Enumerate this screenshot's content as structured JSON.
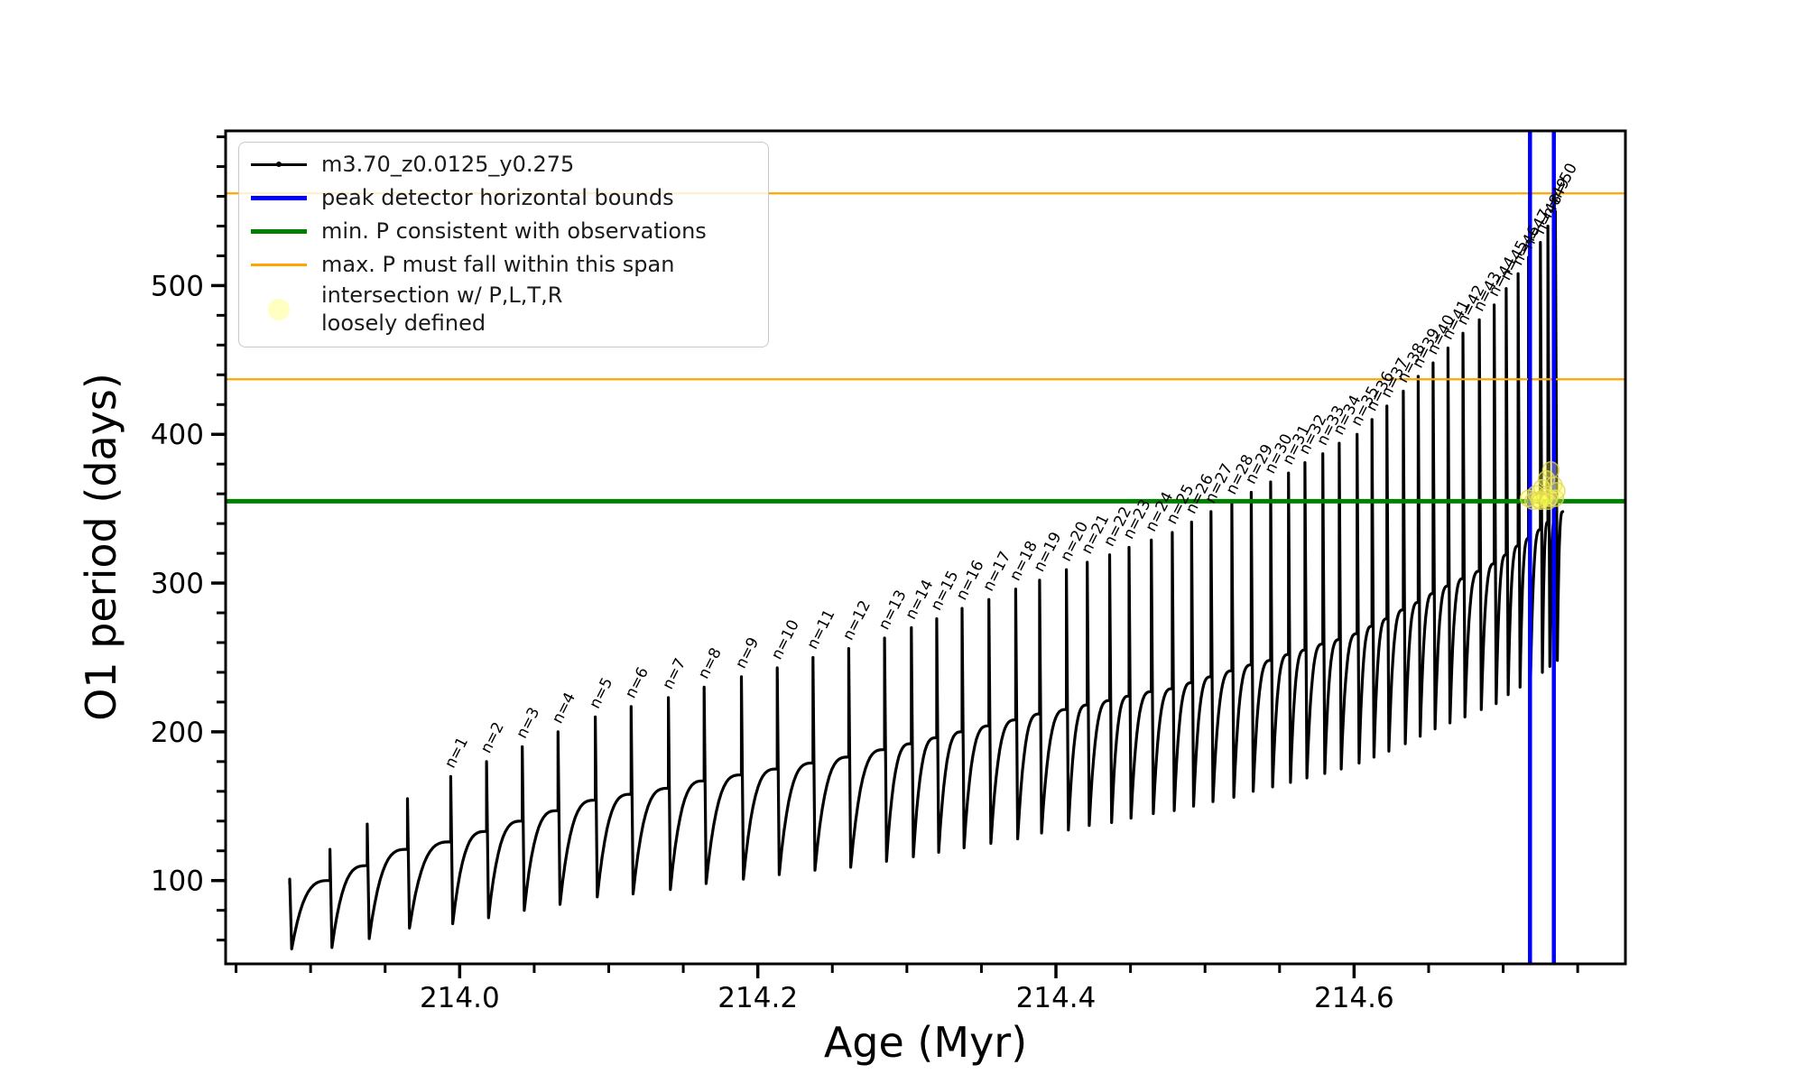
{
  "legend": {
    "entries": [
      {
        "label": "m3.70_z0.0125_y0.275"
      },
      {
        "label": "peak detector horizontal bounds"
      },
      {
        "label": "min. P consistent with observations"
      },
      {
        "label": "max. P must fall within this span"
      },
      {
        "label": "intersection w/ P,L,T,R",
        "label2": "loosely defined"
      }
    ]
  },
  "chart_data": {
    "type": "line",
    "title": "",
    "xlabel": "Age (Myr)",
    "ylabel": "O1 period (days)",
    "xlim": [
      213.843,
      214.782
    ],
    "ylim": [
      44,
      604
    ],
    "grid": false,
    "legend_position": "upper left",
    "series_label": "m3.70_z0.0125_y0.275",
    "x_ticks": [
      {
        "v": 214.0,
        "label": "214.0"
      },
      {
        "v": 214.2,
        "label": "214.2"
      },
      {
        "v": 214.4,
        "label": "214.4"
      },
      {
        "v": 214.6,
        "label": "214.6"
      }
    ],
    "y_ticks": [
      {
        "v": 100,
        "label": "100"
      },
      {
        "v": 200,
        "label": "200"
      },
      {
        "v": 300,
        "label": "300"
      },
      {
        "v": 400,
        "label": "400"
      },
      {
        "v": 500,
        "label": "500"
      }
    ],
    "x_minor": {
      "start": 213.85,
      "step": 0.05,
      "end": 214.75
    },
    "y_minor": {
      "start": 60,
      "step": 20,
      "end": 600
    },
    "colors": {
      "series": "#000000",
      "bounds": "#0000ff",
      "min_p": "#008000",
      "max_p": "#ffa500",
      "intersection_fill": "rgba(255,255,80,0.35)",
      "intersection_edge": "rgba(222,212,80,0.8)"
    },
    "peak_bounds_x": [
      214.718,
      214.734
    ],
    "min_p_value": 355,
    "max_p_values": [
      437,
      562
    ],
    "n_label_prefix": "n=",
    "cycles": [
      [
        null,
        213.886,
        98,
        101,
        54
      ],
      [
        null,
        213.913,
        100,
        121,
        55
      ],
      [
        null,
        213.938,
        110,
        138,
        61
      ],
      [
        null,
        213.965,
        121,
        155,
        68
      ],
      [
        1,
        213.994,
        126,
        170,
        71
      ],
      [
        2,
        214.018,
        133,
        180,
        75
      ],
      [
        3,
        214.042,
        140,
        190,
        80
      ],
      [
        4,
        214.066,
        147,
        200,
        84
      ],
      [
        5,
        214.091,
        154,
        210,
        89
      ],
      [
        6,
        214.115,
        158,
        217,
        91
      ],
      [
        7,
        214.14,
        162,
        223,
        94
      ],
      [
        8,
        214.164,
        167,
        230,
        98
      ],
      [
        9,
        214.189,
        171,
        237,
        101
      ],
      [
        10,
        214.213,
        175,
        243,
        104
      ],
      [
        11,
        214.237,
        179,
        250,
        107
      ],
      [
        12,
        214.261,
        183,
        256,
        109
      ],
      [
        13,
        214.285,
        188,
        263,
        113
      ],
      [
        14,
        214.303,
        192,
        270,
        116
      ],
      [
        15,
        214.32,
        196,
        276,
        119
      ],
      [
        16,
        214.337,
        200,
        283,
        122
      ],
      [
        17,
        214.355,
        204,
        289,
        125
      ],
      [
        18,
        214.373,
        208,
        296,
        128
      ],
      [
        19,
        214.389,
        212,
        302,
        132
      ],
      [
        20,
        214.407,
        215,
        309,
        134
      ],
      [
        21,
        214.421,
        218,
        314,
        137
      ],
      [
        22,
        214.436,
        221,
        319,
        139
      ],
      [
        23,
        214.449,
        224,
        324,
        142
      ],
      [
        24,
        214.464,
        227,
        329,
        145
      ],
      [
        25,
        214.478,
        229,
        334,
        147
      ],
      [
        26,
        214.491,
        233,
        341,
        150
      ],
      [
        27,
        214.504,
        237,
        348,
        153
      ],
      [
        28,
        214.518,
        241,
        354,
        156
      ],
      [
        29,
        214.531,
        245,
        361,
        160
      ],
      [
        30,
        214.544,
        248,
        368,
        163
      ],
      [
        31,
        214.556,
        252,
        374,
        166
      ],
      [
        32,
        214.567,
        255,
        381,
        169
      ],
      [
        33,
        214.579,
        259,
        387,
        172
      ],
      [
        34,
        214.59,
        262,
        394,
        175
      ],
      [
        35,
        214.602,
        266,
        400,
        179
      ],
      [
        36,
        214.612,
        271,
        410,
        183
      ],
      [
        37,
        214.622,
        276,
        419,
        187
      ],
      [
        38,
        214.633,
        282,
        429,
        192
      ],
      [
        39,
        214.643,
        287,
        439,
        197
      ],
      [
        40,
        214.653,
        293,
        448,
        202
      ],
      [
        41,
        214.663,
        298,
        458,
        206
      ],
      [
        42,
        214.673,
        303,
        468,
        210
      ],
      [
        43,
        214.684,
        308,
        477,
        215
      ],
      [
        44,
        214.694,
        313,
        487,
        219
      ],
      [
        45,
        214.702,
        319,
        498,
        225
      ],
      [
        46,
        214.71,
        325,
        508,
        230
      ],
      [
        47,
        214.717,
        330,
        519,
        234
      ],
      [
        48,
        214.725,
        336,
        529,
        240
      ],
      [
        49,
        214.73,
        341,
        540,
        244
      ],
      [
        50,
        214.735,
        345,
        550,
        248
      ]
    ],
    "end_point": [
      214.74,
      348
    ],
    "intersection_points": [
      [
        214.717,
        357
      ],
      [
        214.72,
        355
      ],
      [
        214.722,
        360
      ],
      [
        214.724,
        356
      ],
      [
        214.726,
        364
      ],
      [
        214.728,
        358
      ],
      [
        214.729,
        370
      ],
      [
        214.731,
        357
      ],
      [
        214.732,
        376
      ],
      [
        214.734,
        366
      ],
      [
        214.735,
        357
      ],
      [
        214.736,
        362
      ],
      [
        214.725,
        355
      ],
      [
        214.73,
        355
      ]
    ]
  }
}
